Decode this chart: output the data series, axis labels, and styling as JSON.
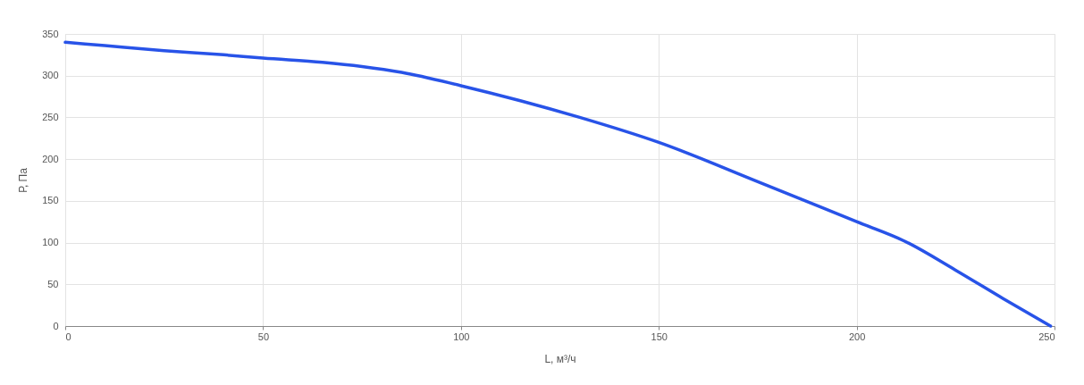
{
  "chart_data": {
    "type": "line",
    "xlabel": "L, м³/ч",
    "ylabel": "Р, Па",
    "x": [
      0,
      10,
      25,
      40,
      50,
      65,
      75,
      85,
      100,
      115,
      130,
      150,
      175,
      200,
      212,
      225,
      237,
      249
    ],
    "series": [
      {
        "color": "#2853e8",
        "values": [
          340,
          336,
          330,
          325,
          321,
          316,
          311,
          304,
          288,
          270,
          250,
          220,
          173,
          125,
          102,
          67,
          33,
          0
        ]
      }
    ],
    "xlim": [
      0,
      250
    ],
    "xticks": [
      0,
      50,
      100,
      150,
      200,
      250
    ],
    "ylim": [
      0,
      350
    ],
    "yticks": [
      0,
      50,
      100,
      150,
      200,
      250,
      300,
      350
    ],
    "grid": true
  }
}
